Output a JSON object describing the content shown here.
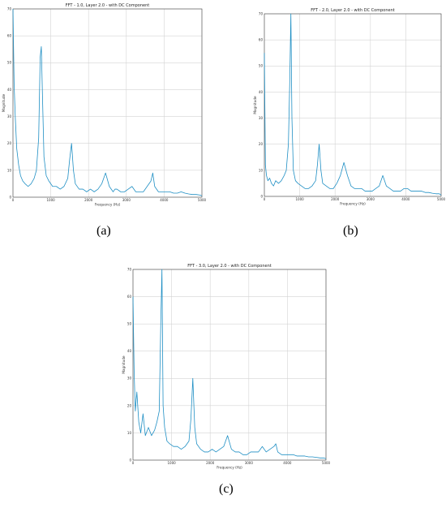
{
  "chart_data": [
    {
      "id": "a",
      "type": "line",
      "title": "FFT - 1.0, Layer 2.0 - with DC Component",
      "xlabel": "Frequency (Hz)",
      "ylabel": "Magnitude",
      "xlim": [
        0,
        5000
      ],
      "ylim": [
        0,
        70
      ],
      "xticks": [
        0,
        1000,
        2000,
        3000,
        4000,
        5000
      ],
      "xtick_labels": [
        "0",
        "1000",
        "2000",
        "3000",
        "4000",
        "5000"
      ],
      "yticks": [
        0,
        10,
        20,
        30,
        40,
        50,
        60,
        70
      ],
      "grid": true,
      "color": "#1f8fc4",
      "caption": "(a)",
      "series": [
        {
          "x": [
            0,
            30,
            60,
            100,
            150,
            200,
            260,
            320,
            400,
            480,
            560,
            620,
            680,
            720,
            750,
            780,
            820,
            880,
            950,
            1050,
            1150,
            1250,
            1350,
            1450,
            1500,
            1550,
            1600,
            1650,
            1750,
            1850,
            1950,
            2050,
            2150,
            2250,
            2350,
            2450,
            2550,
            2650,
            2700,
            2750,
            2850,
            2950,
            3050,
            3150,
            3250,
            3350,
            3450,
            3550,
            3650,
            3700,
            3750,
            3850,
            3950,
            4050,
            4150,
            4250,
            4350,
            4450,
            4550,
            4650,
            4750,
            4850,
            4950,
            5000
          ],
          "y": [
            70,
            42,
            30,
            18,
            12,
            8,
            6,
            5,
            4,
            5,
            7,
            10,
            22,
            52,
            56,
            38,
            15,
            8,
            6,
            4,
            4,
            3,
            4,
            7,
            14,
            20,
            10,
            5,
            3,
            3,
            2,
            3,
            2,
            3,
            5,
            9,
            4,
            2,
            3,
            3,
            2,
            2,
            3,
            4,
            2,
            2,
            2,
            4,
            6,
            9,
            4,
            2,
            2,
            2,
            2,
            1.5,
            1.5,
            2,
            1.5,
            1.2,
            1,
            1,
            0.8,
            0.5
          ]
        }
      ]
    },
    {
      "id": "b",
      "type": "line",
      "title": "FFT - 2.0, Layer 2.0 - with DC Component",
      "xlabel": "Frequency (Hz)",
      "ylabel": "Magnitude",
      "xlim": [
        0,
        5000
      ],
      "ylim": [
        0,
        70
      ],
      "xticks": [
        0,
        1000,
        2000,
        3000,
        4000,
        5000
      ],
      "xtick_labels": [
        "0",
        "1000",
        "2000",
        "3000",
        "4000",
        "5000"
      ],
      "yticks": [
        0,
        10,
        20,
        30,
        40,
        50,
        60,
        70
      ],
      "grid": true,
      "color": "#1f8fc4",
      "caption": "(b)",
      "series": [
        {
          "x": [
            0,
            30,
            60,
            100,
            150,
            200,
            260,
            320,
            400,
            480,
            560,
            620,
            680,
            720,
            750,
            780,
            820,
            880,
            950,
            1050,
            1150,
            1250,
            1350,
            1450,
            1500,
            1550,
            1600,
            1650,
            1750,
            1850,
            1950,
            2050,
            2150,
            2250,
            2350,
            2450,
            2550,
            2650,
            2700,
            2750,
            2850,
            2950,
            3050,
            3150,
            3250,
            3350,
            3450,
            3550,
            3650,
            3700,
            3750,
            3850,
            3950,
            4050,
            4150,
            4250,
            4350,
            4450,
            4550,
            4650,
            4750,
            4850,
            4950,
            5000
          ],
          "y": [
            55,
            12,
            8,
            6,
            7,
            5,
            4,
            6,
            5,
            6,
            8,
            10,
            20,
            45,
            70,
            30,
            10,
            6,
            5,
            4,
            3,
            3,
            4,
            6,
            12,
            20,
            10,
            5,
            4,
            3,
            3,
            5,
            8,
            13,
            8,
            4,
            3,
            3,
            3,
            3,
            2,
            2,
            2,
            3,
            4,
            8,
            4,
            3,
            2,
            2,
            2,
            2,
            3,
            3,
            2,
            2,
            2,
            2,
            1.5,
            1.5,
            1.2,
            1,
            1,
            0.5
          ]
        }
      ]
    },
    {
      "id": "c",
      "type": "line",
      "title": "FFT - 3.0, Layer 2.0 - with DC Component",
      "xlabel": "Frequency (Hz)",
      "ylabel": "Magnitude",
      "xlim": [
        0,
        5000
      ],
      "ylim": [
        0,
        70
      ],
      "xticks": [
        0,
        1000,
        2000,
        3000,
        4000,
        5000
      ],
      "xtick_labels": [
        "0",
        "1000",
        "2000",
        "3000",
        "4000",
        "5000"
      ],
      "yticks": [
        0,
        10,
        20,
        30,
        40,
        50,
        60,
        70
      ],
      "grid": true,
      "color": "#1f8fc4",
      "caption": "(c)",
      "series": [
        {
          "x": [
            0,
            30,
            60,
            100,
            150,
            200,
            260,
            320,
            400,
            480,
            560,
            620,
            680,
            720,
            750,
            780,
            820,
            880,
            950,
            1050,
            1150,
            1250,
            1350,
            1450,
            1500,
            1550,
            1600,
            1650,
            1750,
            1850,
            1950,
            2050,
            2150,
            2250,
            2350,
            2450,
            2550,
            2650,
            2700,
            2750,
            2850,
            2950,
            3050,
            3150,
            3250,
            3350,
            3450,
            3550,
            3650,
            3700,
            3750,
            3850,
            3950,
            4050,
            4150,
            4250,
            4350,
            4450,
            4550,
            4650,
            4750,
            4850,
            4950,
            5000
          ],
          "y": [
            60,
            32,
            18,
            25,
            14,
            10,
            17,
            9,
            12,
            9,
            11,
            14,
            18,
            50,
            70,
            20,
            12,
            7,
            6,
            5,
            5,
            4,
            5,
            7,
            15,
            30,
            12,
            6,
            4,
            3,
            3,
            4,
            3,
            4,
            5,
            9,
            4,
            3,
            3,
            3,
            2,
            2,
            3,
            3,
            3,
            5,
            3,
            4,
            5,
            6,
            3,
            2,
            2,
            2,
            2,
            1.5,
            1.5,
            1.5,
            1.2,
            1.2,
            1,
            0.8,
            0.8,
            0.5
          ]
        }
      ]
    }
  ]
}
